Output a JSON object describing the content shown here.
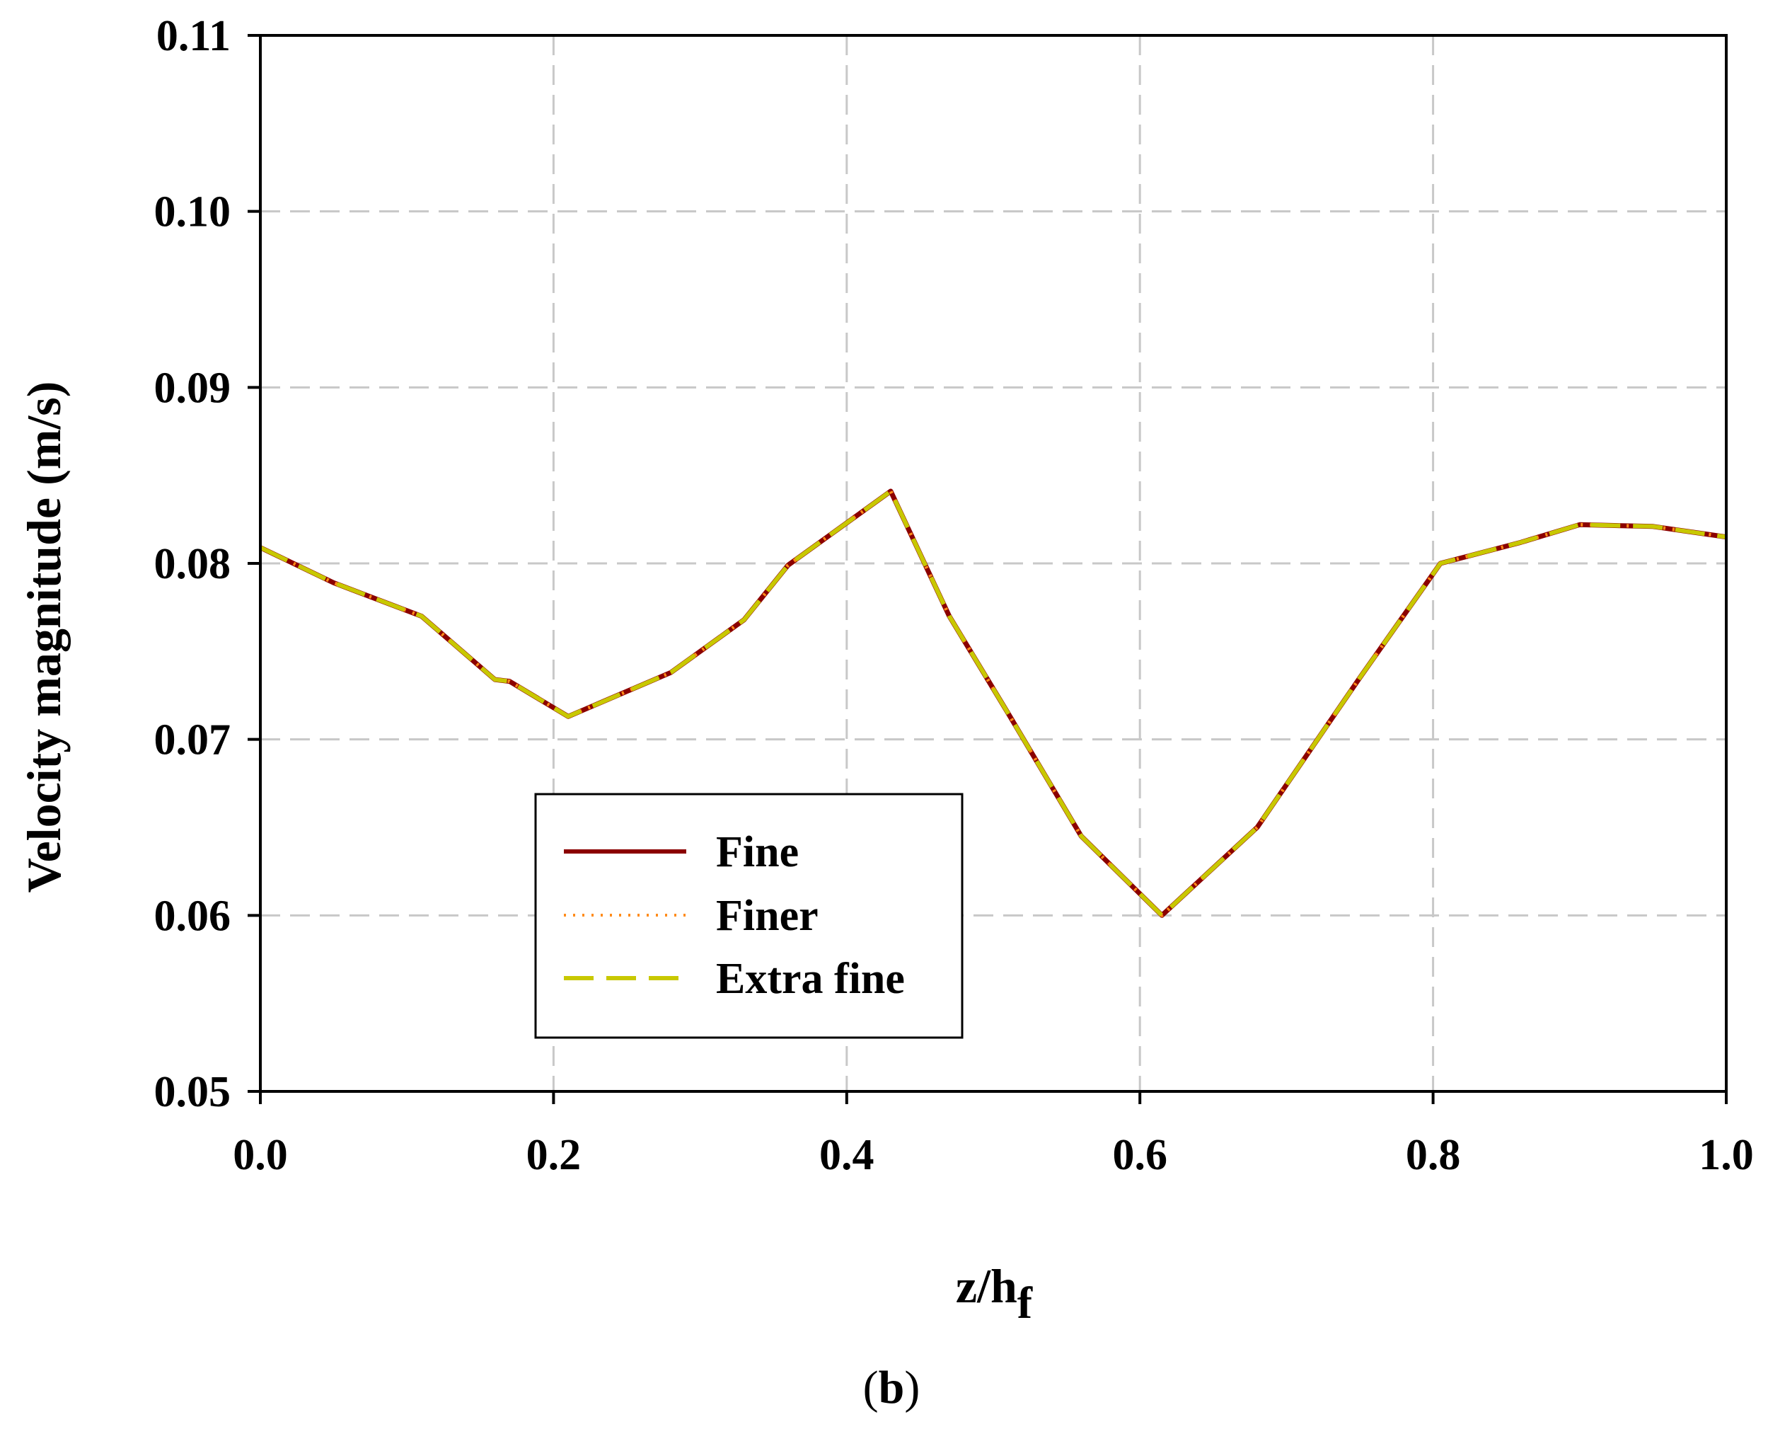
{
  "chart_data": {
    "type": "line",
    "xlabel": "z/h",
    "xlabel_sub": "f",
    "ylabel": "Velocity magnitude (m/s)",
    "panel_label_open": "(",
    "panel_label": "b",
    "panel_label_close": ")",
    "xlim": [
      0.0,
      1.0
    ],
    "ylim": [
      0.05,
      0.11
    ],
    "xticks": [
      0.0,
      0.2,
      0.4,
      0.6,
      0.8,
      1.0
    ],
    "xtick_labels": [
      "0.0",
      "0.2",
      "0.4",
      "0.6",
      "0.8",
      "1.0"
    ],
    "yticks": [
      0.05,
      0.06,
      0.07,
      0.08,
      0.09,
      0.1,
      0.11
    ],
    "ytick_labels": [
      "0.05",
      "0.06",
      "0.07",
      "0.08",
      "0.09",
      "0.10",
      "0.11"
    ],
    "grid": true,
    "legend_position": "lower-left-center",
    "x": [
      0.0,
      0.05,
      0.11,
      0.16,
      0.17,
      0.21,
      0.28,
      0.33,
      0.36,
      0.43,
      0.47,
      0.51,
      0.56,
      0.615,
      0.68,
      0.75,
      0.805,
      0.86,
      0.9,
      0.95,
      1.0
    ],
    "series": [
      {
        "name": "Fine",
        "color": "#8b0000",
        "style": "solid",
        "values": [
          0.0809,
          0.0789,
          0.077,
          0.0734,
          0.0733,
          0.0713,
          0.0738,
          0.0768,
          0.0799,
          0.0841,
          0.077,
          0.0715,
          0.0645,
          0.06,
          0.065,
          0.0735,
          0.08,
          0.0812,
          0.0822,
          0.0821,
          0.0815
        ]
      },
      {
        "name": "Finer",
        "color": "#ff8c1a",
        "style": "dotted",
        "values": [
          0.0809,
          0.0789,
          0.077,
          0.0734,
          0.0733,
          0.0713,
          0.0738,
          0.0768,
          0.0799,
          0.0841,
          0.077,
          0.0715,
          0.0645,
          0.06,
          0.065,
          0.0735,
          0.08,
          0.0812,
          0.0822,
          0.0821,
          0.0815
        ]
      },
      {
        "name": "Extra fine",
        "color": "#c8c800",
        "style": "dashed",
        "values": [
          0.0809,
          0.0789,
          0.077,
          0.0734,
          0.0733,
          0.0713,
          0.0738,
          0.0768,
          0.0799,
          0.0841,
          0.077,
          0.0715,
          0.0645,
          0.06,
          0.065,
          0.0735,
          0.08,
          0.0812,
          0.0822,
          0.0821,
          0.0815
        ]
      }
    ]
  }
}
